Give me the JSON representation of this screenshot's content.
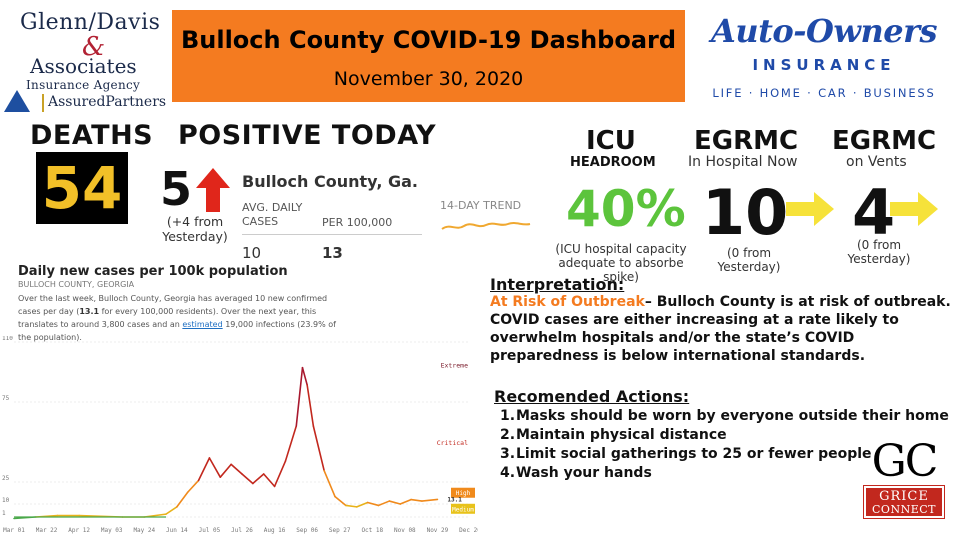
{
  "logos": {
    "glenn_davis": {
      "line1": "Glenn/Davis",
      "amp": "&",
      "line2": "Associates",
      "line3": "Insurance Agency",
      "line4": "AssuredPartners"
    },
    "auto_owners": {
      "name": "Auto-Owners",
      "subtitle": "INSURANCE",
      "tagline": "LIFE · HOME · CAR · BUSINESS"
    },
    "grice_connect": {
      "letters": "GC",
      "line1": "GRICE",
      "line2": "CONNECT"
    }
  },
  "header": {
    "title": "Bulloch County COVID-19 Dashboard",
    "date": "November 30, 2020",
    "banner_color": "#f47b20"
  },
  "deaths": {
    "label": "DEATHS",
    "value": "54"
  },
  "positive": {
    "label": "POSITIVE TODAY",
    "value": "5",
    "delta_line1": "(+4  from",
    "delta_line2": "Yesterday)",
    "arrow_icon": "up-arrow-icon"
  },
  "nyt": {
    "title": "Bulloch County, Ga.",
    "col1_header_line1": "AVG. DAILY",
    "col1_header_line2": "CASES",
    "col2_header": "PER 100,000",
    "col1_value": "10",
    "col2_value": "13",
    "trend_label": "14-DAY TREND"
  },
  "icu": {
    "label": "ICU",
    "sub": "HEADROOM",
    "value": "40%",
    "note_line1": "(ICU hospital capacity",
    "note_line2": "adequate to absorbe spike)"
  },
  "egrmc_hospital": {
    "label": "EGRMC",
    "sub": "In Hospital Now",
    "value": "10",
    "note_line1": "(0 from",
    "note_line2": "Yesterday)"
  },
  "egrmc_vents": {
    "label": "EGRMC",
    "sub": "on Vents",
    "value": "4",
    "note_line1": "(0 from",
    "note_line2": "Yesterday)"
  },
  "chart_panel": {
    "title": "Daily new cases per 100k population",
    "subtitle": "BULLOCH COUNTY, GEORGIA",
    "desc_part1": "Over the last week, Bulloch County, Georgia has averaged 10 new confirmed cases per day (",
    "desc_bold": "13.1",
    "desc_part2": " for every 100,000 residents). Over the next year, this translates to around 3,800 cases and an ",
    "desc_link": "estimated",
    "desc_part3": " 19,000 infections (23.9% of the population)."
  },
  "chart_data": {
    "type": "line",
    "title": "Daily new cases per 100k population",
    "xlabel": "",
    "ylabel": "",
    "ylim": [
      0,
      110
    ],
    "yticks": [
      "110",
      "75",
      "25",
      "10",
      "1"
    ],
    "ytick_values": [
      110,
      75,
      25,
      10,
      1
    ],
    "xticks": [
      "Mar 01",
      "Mar 22",
      "Apr 12",
      "May 03",
      "May 24",
      "Jun 14",
      "Jul 05",
      "Jul 26",
      "Aug 16",
      "Sep 06",
      "Sep 27",
      "Oct 18",
      "Nov 08",
      "Nov 29",
      "Dec 20"
    ],
    "zones": [
      {
        "label": "Extreme",
        "y": 95,
        "color": "#7a1a2a"
      },
      {
        "label": "Critical",
        "y": 48,
        "color": "#c2281e"
      },
      {
        "label": "High",
        "y": 17,
        "color": "#f08a1c"
      },
      {
        "label": "Medium",
        "y": 6,
        "color": "#e8c21a"
      }
    ],
    "current_label": "13.1",
    "series": [
      {
        "points": [
          [
            "Mar 01",
            0.5
          ],
          [
            "Mar 15",
            1
          ],
          [
            "Mar 29",
            2
          ],
          [
            "Apr 12",
            2
          ],
          [
            "Apr 26",
            1.5
          ],
          [
            "May 10",
            1
          ],
          [
            "May 24",
            1
          ],
          [
            "Jun 07",
            3
          ],
          [
            "Jun 14",
            8
          ],
          [
            "Jun 21",
            18
          ],
          [
            "Jun 28",
            26
          ],
          [
            "Jul 05",
            40
          ],
          [
            "Jul 12",
            28
          ],
          [
            "Jul 19",
            36
          ],
          [
            "Jul 26",
            30
          ],
          [
            "Aug 02",
            24
          ],
          [
            "Aug 09",
            30
          ],
          [
            "Aug 16",
            22
          ],
          [
            "Aug 23",
            38
          ],
          [
            "Aug 30",
            60
          ],
          [
            "Sep 03",
            95
          ],
          [
            "Sep 06",
            85
          ],
          [
            "Sep 10",
            60
          ],
          [
            "Sep 17",
            32
          ],
          [
            "Sep 24",
            15
          ],
          [
            "Oct 01",
            9
          ],
          [
            "Oct 08",
            8
          ],
          [
            "Oct 15",
            11
          ],
          [
            "Oct 22",
            9
          ],
          [
            "Oct 29",
            12
          ],
          [
            "Nov 05",
            10
          ],
          [
            "Nov 12",
            13
          ],
          [
            "Nov 19",
            12
          ],
          [
            "Nov 29",
            13.1
          ]
        ]
      }
    ]
  },
  "interpretation": {
    "heading": "Interpretation:",
    "risk": "At Risk of Outbreak",
    "text": "– Bulloch County is at risk of outbreak. COVID cases are either increasing at a rate likely to overwhelm hospitals and/or the state’s COVID preparedness is below international standards."
  },
  "recommended": {
    "heading": "Recomended Actions:",
    "items": [
      "Masks should be worn by everyone outside their home",
      "Maintain physical distance",
      "Limit social gatherings to 25 or fewer people",
      "Wash your hands"
    ]
  }
}
